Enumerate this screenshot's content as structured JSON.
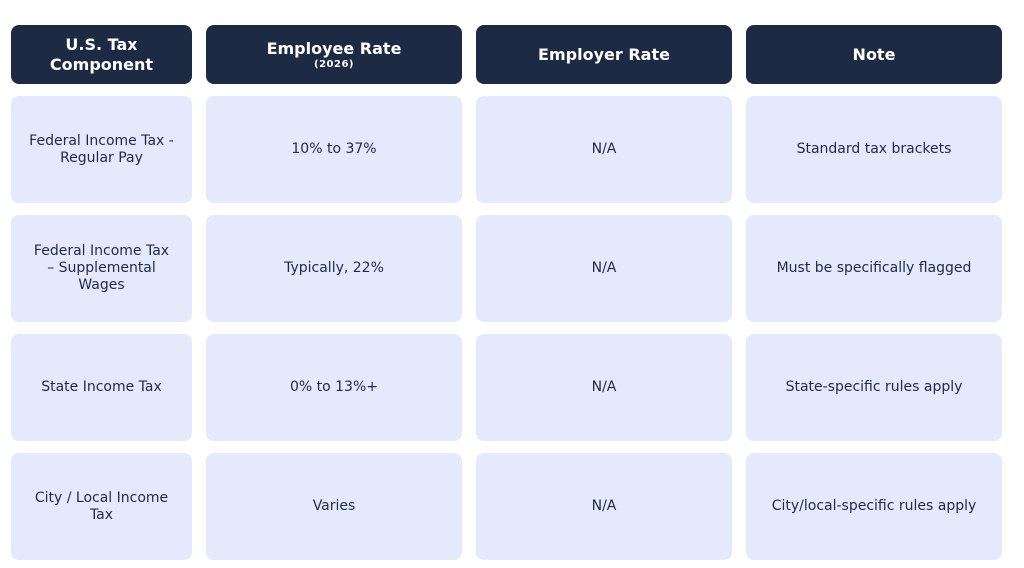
{
  "table": {
    "headers": [
      {
        "label": "U.S. Tax\nComponent",
        "sub": ""
      },
      {
        "label": "Employee Rate",
        "sub": "(2026)"
      },
      {
        "label": "Employer Rate",
        "sub": ""
      },
      {
        "label": "Note",
        "sub": ""
      }
    ],
    "rows": [
      {
        "component": "Federal Income Tax -\nRegular Pay",
        "employee": "10% to 37%",
        "employer": "N/A",
        "note": "Standard tax brackets"
      },
      {
        "component": "Federal Income Tax\n– Supplemental\nWages",
        "employee": "Typically, 22%",
        "employer": "N/A",
        "note": "Must be specifically flagged"
      },
      {
        "component": "State Income Tax",
        "employee": "0% to 13%+",
        "employer": "N/A",
        "note": "State-specific rules apply"
      },
      {
        "component": "City / Local Income\nTax",
        "employee": "Varies",
        "employer": "N/A",
        "note": "City/local-specific rules apply"
      }
    ]
  },
  "colors": {
    "header_bg": "#1d2a44",
    "cell_bg": "#e4e9fb",
    "text": "#1f2a44"
  }
}
